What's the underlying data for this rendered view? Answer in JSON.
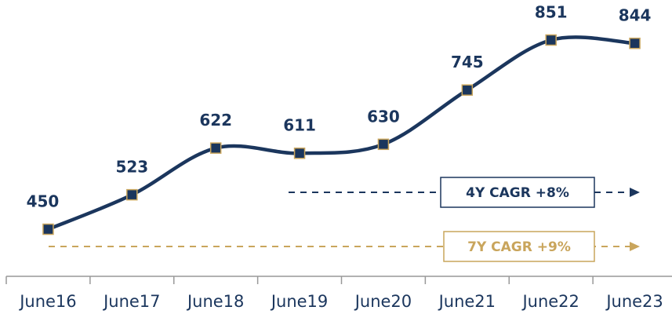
{
  "chart_data": {
    "type": "line",
    "categories": [
      "June16",
      "June17",
      "June18",
      "June19",
      "June20",
      "June21",
      "June22",
      "June23"
    ],
    "values": [
      450,
      523,
      622,
      611,
      630,
      745,
      851,
      844
    ],
    "color": "#1b365d",
    "marker_edge_color": "#c9a55c",
    "annotations": [
      {
        "text": "4Y CAGR +8%",
        "color": "#1b365d"
      },
      {
        "text": "7Y CAGR +9%",
        "color": "#c9a55c"
      }
    ]
  }
}
